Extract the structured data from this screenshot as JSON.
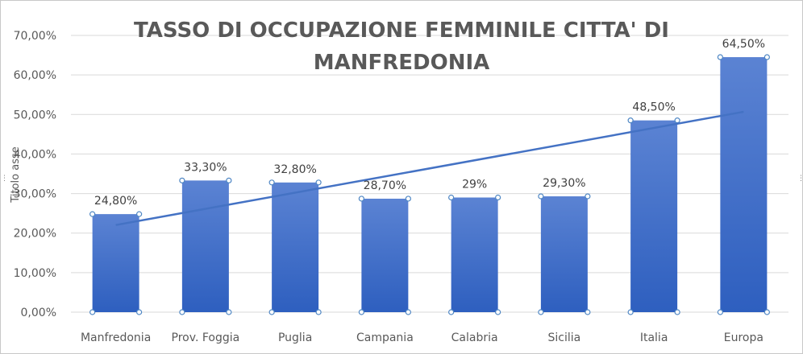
{
  "chart_data": {
    "type": "bar",
    "title_line1": "TASSO DI OCCUPAZIONE FEMMINILE CITTA' DI",
    "title_line2": "MANFREDONIA",
    "ylabel": "Titolo asse",
    "categories": [
      "Manfredonia",
      "Prov. Foggia",
      "Puglia",
      "Campania",
      "Calabria",
      "Sicilia",
      "Italia",
      "Europa"
    ],
    "values": [
      24.8,
      33.3,
      32.8,
      28.7,
      29.0,
      29.3,
      48.5,
      64.5
    ],
    "data_labels": [
      "24,80%",
      "33,30%",
      "32,80%",
      "28,70%",
      "29%",
      "29,30%",
      "48,50%",
      "64,50%"
    ],
    "yticks": [
      "0,00%",
      "10,00%",
      "20,00%",
      "30,00%",
      "40,00%",
      "50,00%",
      "60,00%",
      "70,00%"
    ],
    "ylim": [
      0,
      70
    ],
    "trendline": "linear",
    "grid": true,
    "colors": {
      "bar_top": "#5b83d3",
      "bar_bottom": "#2e5fbf",
      "trend": "#4472c4",
      "grid": "#d9d9d9"
    }
  }
}
